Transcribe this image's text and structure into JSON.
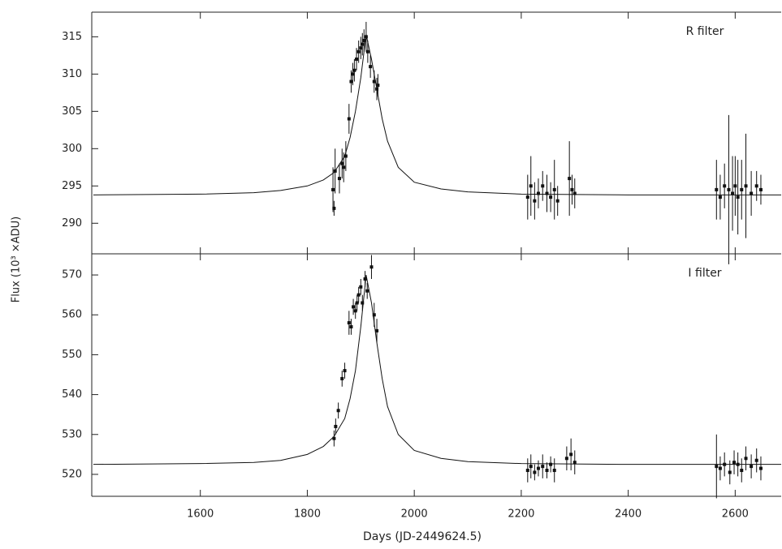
{
  "chart_data": [
    {
      "type": "errorbar",
      "annotation": "R filter",
      "ylabel": "Flux (10³ ×ADU)",
      "xlim": [
        1397,
        2686
      ],
      "ylim": [
        285.9,
        318.3
      ],
      "xticks": [
        1600,
        1800,
        2000,
        2200,
        2400,
        2600
      ],
      "yticks": [
        290,
        295,
        300,
        305,
        310,
        315
      ],
      "model": {
        "color": "#111111",
        "x": [
          1400,
          1600,
          1700,
          1750,
          1800,
          1830,
          1850,
          1870,
          1880,
          1890,
          1900,
          1910,
          1920,
          1930,
          1940,
          1950,
          1970,
          2000,
          2050,
          2100,
          2200,
          2400,
          2686
        ],
        "values": [
          293.8,
          293.9,
          294.1,
          294.4,
          295.0,
          295.8,
          296.8,
          299.0,
          301.5,
          305,
          309.5,
          315.3,
          312,
          308,
          304,
          301,
          297.5,
          295.5,
          294.6,
          294.2,
          293.9,
          293.8,
          293.8
        ]
      },
      "series": [
        {
          "color": "#111111",
          "x": [
            1848,
            1850,
            1852,
            1860,
            1865,
            1868,
            1872,
            1878,
            1882,
            1885,
            1888,
            1892,
            1896,
            1900,
            1903,
            1906,
            1910,
            1913,
            1918,
            1925,
            1930,
            1932,
            2212,
            2218,
            2225,
            2232,
            2240,
            2248,
            2255,
            2262,
            2268,
            2290,
            2295,
            2300,
            2565,
            2572,
            2580,
            2588,
            2595,
            2600,
            2605,
            2612,
            2620,
            2630,
            2640,
            2648
          ],
          "values": [
            294.5,
            292,
            297,
            296,
            298,
            297.5,
            299,
            304,
            309,
            310,
            310.5,
            312,
            313,
            313.5,
            314,
            314.5,
            315,
            313,
            311,
            309,
            308,
            308.5,
            293.5,
            295,
            293,
            294,
            295,
            294,
            293.5,
            294.5,
            293,
            296,
            294.5,
            294,
            294.5,
            293.5,
            295,
            294.5,
            294,
            295,
            293.5,
            294.5,
            295,
            294,
            295,
            294.5
          ],
          "errors": [
            3,
            1,
            3,
            2,
            2,
            2,
            2,
            2,
            1.5,
            1.5,
            1.5,
            1.5,
            1.5,
            1.5,
            1.5,
            1.5,
            2,
            1.5,
            1.5,
            1.5,
            1.5,
            1.5,
            3,
            4,
            2.5,
            2,
            2,
            2.5,
            2,
            4,
            2,
            5,
            2,
            2,
            4,
            3,
            3,
            10,
            5,
            4,
            5,
            4,
            7,
            3,
            2,
            2
          ]
        }
      ]
    },
    {
      "type": "errorbar",
      "annotation": "I filter",
      "xlabel": "Days (JD-2449624.5)",
      "xlim": [
        1397,
        2686
      ],
      "ylim": [
        514.5,
        575.3
      ],
      "xticks": [
        1600,
        1800,
        2000,
        2200,
        2400,
        2600
      ],
      "yticks": [
        520,
        530,
        540,
        550,
        560,
        570
      ],
      "model": {
        "color": "#111111",
        "x": [
          1400,
          1600,
          1700,
          1750,
          1800,
          1830,
          1850,
          1870,
          1880,
          1890,
          1900,
          1910,
          1920,
          1930,
          1940,
          1950,
          1970,
          2000,
          2050,
          2100,
          2200,
          2400,
          2686
        ],
        "values": [
          522.5,
          522.7,
          523.0,
          523.5,
          525,
          527,
          529.5,
          534,
          539,
          546,
          557,
          570,
          563,
          553,
          544,
          537,
          530,
          526,
          524,
          523.2,
          522.7,
          522.5,
          522.5
        ]
      },
      "series": [
        {
          "color": "#111111",
          "x": [
            1850,
            1853,
            1858,
            1865,
            1870,
            1878,
            1882,
            1886,
            1890,
            1893,
            1896,
            1900,
            1903,
            1908,
            1912,
            1920,
            1925,
            1930,
            2212,
            2218,
            2225,
            2232,
            2240,
            2248,
            2255,
            2262,
            2285,
            2293,
            2300,
            2565,
            2572,
            2580,
            2590,
            2598,
            2605,
            2612,
            2620,
            2630,
            2640,
            2648
          ],
          "values": [
            529,
            532,
            536,
            544,
            546,
            558,
            557,
            562,
            561,
            563,
            565,
            567,
            563,
            569,
            566,
            572,
            560,
            556,
            521,
            522,
            520.5,
            521.5,
            522,
            521,
            522.5,
            521,
            524,
            525,
            523,
            522,
            521.5,
            522.5,
            520.5,
            523,
            522.5,
            521,
            524,
            522,
            523.5,
            521.5
          ],
          "errors": [
            2,
            2,
            2,
            2,
            2,
            3,
            2,
            2,
            2,
            2,
            2,
            2,
            2,
            2,
            2,
            3,
            3,
            3,
            3,
            3,
            2,
            2,
            3,
            2,
            2,
            3,
            3,
            4,
            3,
            8,
            3,
            3,
            3,
            3,
            3,
            3,
            3,
            3,
            3,
            3
          ]
        }
      ]
    }
  ]
}
